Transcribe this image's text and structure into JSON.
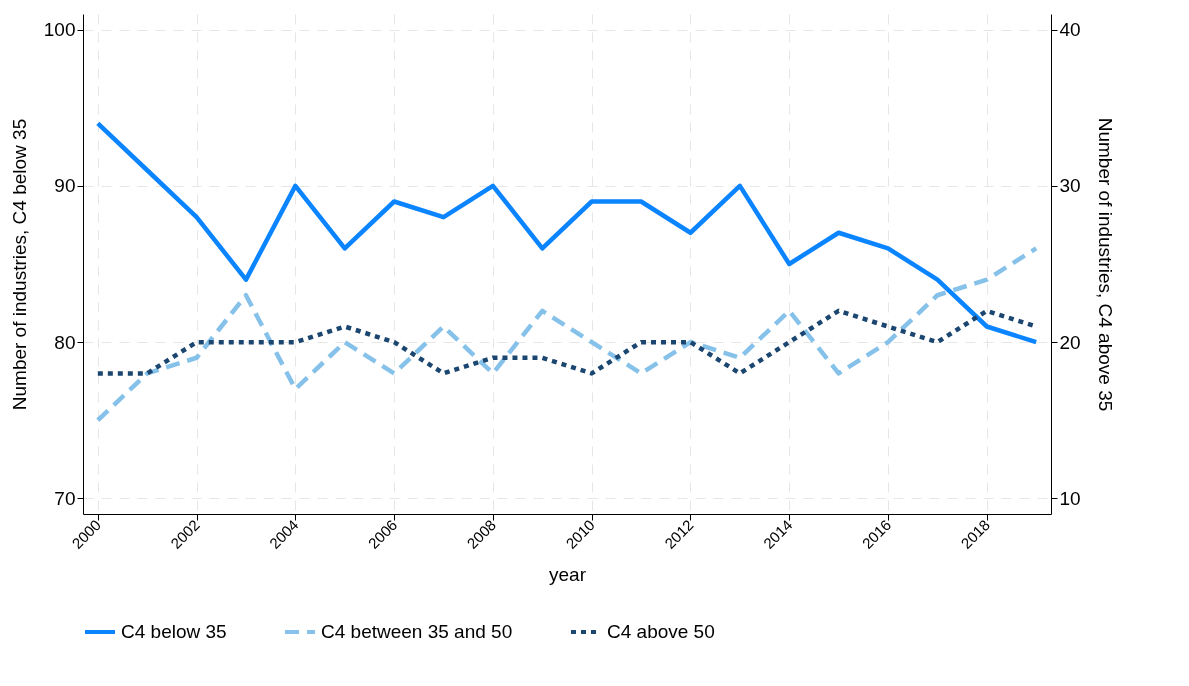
{
  "chart_data": {
    "type": "line",
    "xlabel": "year",
    "ylabel": "Number of industries, C4 below 35",
    "y2label": "Number of industries, C4 above 35",
    "x": [
      2000,
      2001,
      2002,
      2003,
      2004,
      2005,
      2006,
      2007,
      2008,
      2009,
      2010,
      2011,
      2012,
      2013,
      2014,
      2015,
      2016,
      2017,
      2018,
      2019
    ],
    "xlim": [
      1999.7,
      2019.3
    ],
    "xticks": [
      2000,
      2002,
      2004,
      2006,
      2008,
      2010,
      2012,
      2014,
      2016,
      2018
    ],
    "ylim": [
      69,
      101
    ],
    "yticks": [
      70,
      80,
      90,
      100
    ],
    "y2lim": [
      9,
      41
    ],
    "y2ticks": [
      10,
      20,
      30,
      40
    ],
    "grid": true,
    "legend": "bottom",
    "marker": "none",
    "series": [
      {
        "name": "C4 below 35",
        "color": "#0a84ff",
        "line_style": "solid",
        "values": [
          94,
          91,
          88,
          84,
          90,
          86,
          89,
          88,
          90,
          86,
          89,
          89,
          87,
          90,
          85,
          87,
          86,
          84,
          81,
          80
        ]
      },
      {
        "name": "C4 between 35 and 50",
        "color": "#86c1ea",
        "line_style": "dashed",
        "axis": "y2",
        "values": [
          15,
          18,
          19,
          23,
          17,
          20,
          18,
          21,
          18,
          22,
          20,
          18,
          20,
          19,
          22,
          18,
          20,
          23,
          24,
          26
        ]
      },
      {
        "name": "C4 above 50",
        "color": "#1b4670",
        "line_style": "dotted",
        "axis": "y2",
        "values": [
          18,
          18,
          20,
          20,
          20,
          21,
          20,
          18,
          19,
          19,
          18,
          20,
          20,
          18,
          20,
          22,
          21,
          20,
          22,
          21
        ]
      }
    ]
  }
}
